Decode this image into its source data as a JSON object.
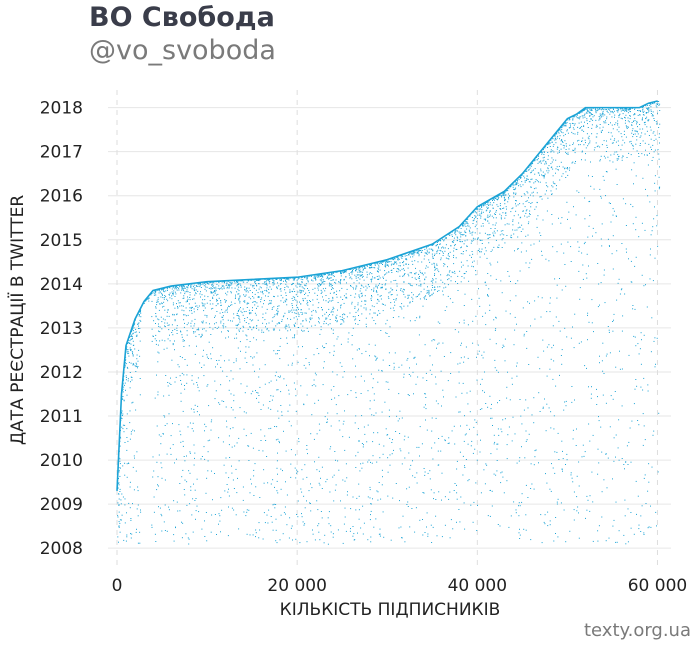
{
  "header": {
    "title": "ВО Свобода",
    "subtitle": "@vo_svoboda"
  },
  "footer": {
    "credit": "texty.org.ua"
  },
  "chart_data": {
    "type": "scatter",
    "title": "ВО Свобода",
    "subtitle": "@vo_svoboda",
    "xlabel": "КІЛЬКІСТЬ ПІДПИСНИКІВ",
    "ylabel": "ДАТА РЕЄСТРАЦІЇ В TWITTER",
    "xlim": [
      -1000,
      61500
    ],
    "ylim": [
      2007.55,
      2018.4
    ],
    "x_ticks": [
      {
        "value": 0,
        "label": "0"
      },
      {
        "value": 20000,
        "label": "20 000"
      },
      {
        "value": 40000,
        "label": "40 000"
      },
      {
        "value": 60000,
        "label": "60 000"
      }
    ],
    "y_ticks": [
      {
        "value": 2008,
        "label": "2008"
      },
      {
        "value": 2009,
        "label": "2009"
      },
      {
        "value": 2010,
        "label": "2010"
      },
      {
        "value": 2011,
        "label": "2011"
      },
      {
        "value": 2012,
        "label": "2012"
      },
      {
        "value": 2013,
        "label": "2013"
      },
      {
        "value": 2014,
        "label": "2014"
      },
      {
        "value": 2015,
        "label": "2015"
      },
      {
        "value": 2016,
        "label": "2016"
      },
      {
        "value": 2017,
        "label": "2017"
      },
      {
        "value": 2018,
        "label": "2018"
      }
    ],
    "grid": true,
    "point_color": "#1ba3d6",
    "frontier": {
      "x": [
        0,
        500,
        1000,
        2000,
        3000,
        4000,
        6000,
        10000,
        15000,
        20000,
        25000,
        30000,
        35000,
        38000,
        40000,
        43000,
        45000,
        47000,
        49000,
        50000,
        51000,
        52000,
        54000,
        58000,
        59000,
        60000
      ],
      "y": [
        2009.3,
        2011.5,
        2012.6,
        2013.2,
        2013.6,
        2013.85,
        2013.95,
        2014.05,
        2014.1,
        2014.15,
        2014.3,
        2014.55,
        2014.9,
        2015.3,
        2015.75,
        2016.1,
        2016.5,
        2017.0,
        2017.5,
        2017.75,
        2017.85,
        2018.0,
        2018.0,
        2018.0,
        2018.1,
        2018.15
      ]
    }
  }
}
